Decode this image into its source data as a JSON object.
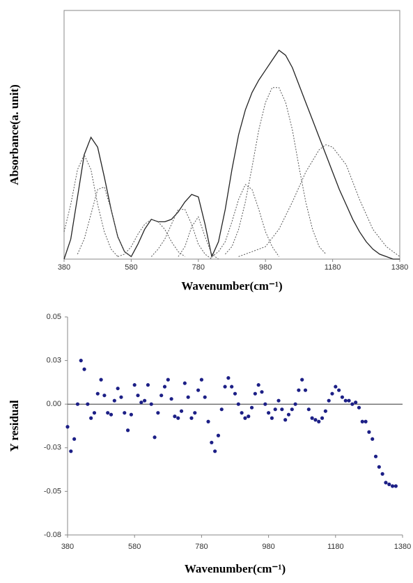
{
  "chart_data": [
    {
      "type": "line",
      "y_label": "Absorbance(a. unit)",
      "x_label": "Wavenumber(cm⁻¹)",
      "xlim": [
        380,
        1380
      ],
      "xticks": [
        380,
        580,
        780,
        980,
        1180,
        1380
      ],
      "ylim": [
        0,
        1
      ],
      "frame": true,
      "x": [
        380,
        400,
        420,
        440,
        460,
        480,
        500,
        520,
        540,
        560,
        580,
        600,
        620,
        640,
        660,
        680,
        700,
        720,
        740,
        760,
        780,
        800,
        820,
        840,
        860,
        880,
        900,
        920,
        940,
        960,
        980,
        1000,
        1020,
        1040,
        1060,
        1080,
        1100,
        1120,
        1140,
        1160,
        1180,
        1200,
        1220,
        1240,
        1260,
        1280,
        1300,
        1320,
        1340,
        1360,
        1380
      ],
      "series": [
        {
          "color": "#222222",
          "line_style": "solid",
          "values": [
            0.0,
            0.08,
            0.25,
            0.42,
            0.49,
            0.45,
            0.33,
            0.2,
            0.09,
            0.03,
            0.01,
            0.06,
            0.12,
            0.16,
            0.15,
            0.15,
            0.16,
            0.19,
            0.23,
            0.26,
            0.25,
            0.14,
            0.01,
            0.07,
            0.2,
            0.36,
            0.5,
            0.6,
            0.67,
            0.72,
            0.76,
            0.8,
            0.84,
            0.82,
            0.77,
            0.7,
            0.63,
            0.56,
            0.49,
            0.42,
            0.35,
            0.28,
            0.22,
            0.16,
            0.11,
            0.07,
            0.04,
            0.02,
            0.01,
            0.0,
            0.0
          ]
        },
        {
          "color": "#555555",
          "line_style": "dotted",
          "x": [
            380,
            400,
            420,
            440,
            460,
            480,
            500,
            520,
            540
          ],
          "values": [
            0.11,
            0.22,
            0.36,
            0.42,
            0.36,
            0.22,
            0.11,
            0.04,
            0.01
          ]
        },
        {
          "color": "#555555",
          "line_style": "dotted",
          "x": [
            420,
            440,
            460,
            480,
            500,
            520,
            540,
            560,
            580
          ],
          "values": [
            0.02,
            0.08,
            0.18,
            0.28,
            0.29,
            0.2,
            0.09,
            0.03,
            0.01
          ]
        },
        {
          "color": "#555555",
          "line_style": "dotted",
          "x": [
            540,
            560,
            580,
            600,
            620,
            640,
            660,
            680,
            700,
            720,
            740
          ],
          "values": [
            0.01,
            0.02,
            0.05,
            0.1,
            0.14,
            0.16,
            0.15,
            0.12,
            0.07,
            0.03,
            0.01
          ]
        },
        {
          "color": "#555555",
          "line_style": "dotted",
          "x": [
            640,
            660,
            680,
            700,
            720,
            740,
            760,
            780,
            800,
            820
          ],
          "values": [
            0.01,
            0.04,
            0.08,
            0.14,
            0.2,
            0.2,
            0.14,
            0.06,
            0.02,
            0.0
          ]
        },
        {
          "color": "#555555",
          "line_style": "dotted",
          "x": [
            720,
            740,
            760,
            780,
            800,
            820,
            840
          ],
          "values": [
            0.01,
            0.05,
            0.13,
            0.17,
            0.09,
            0.02,
            0.0
          ]
        },
        {
          "color": "#555555",
          "line_style": "dotted",
          "x": [
            820,
            840,
            860,
            880,
            900,
            920,
            940,
            960,
            980,
            1000,
            1020
          ],
          "values": [
            0.01,
            0.03,
            0.07,
            0.15,
            0.24,
            0.3,
            0.28,
            0.2,
            0.11,
            0.05,
            0.01
          ]
        },
        {
          "color": "#555555",
          "line_style": "dotted",
          "x": [
            860,
            880,
            900,
            920,
            940,
            960,
            980,
            1000,
            1020,
            1040,
            1060,
            1080,
            1100,
            1120,
            1140,
            1160
          ],
          "values": [
            0.02,
            0.05,
            0.12,
            0.23,
            0.37,
            0.52,
            0.63,
            0.69,
            0.69,
            0.63,
            0.52,
            0.37,
            0.23,
            0.12,
            0.05,
            0.02
          ]
        },
        {
          "color": "#555555",
          "line_style": "dotted",
          "x": [
            900,
            940,
            980,
            1020,
            1060,
            1100,
            1140,
            1160,
            1180,
            1220,
            1260,
            1300,
            1340,
            1380
          ],
          "values": [
            0.01,
            0.03,
            0.05,
            0.12,
            0.23,
            0.35,
            0.44,
            0.46,
            0.45,
            0.38,
            0.24,
            0.12,
            0.05,
            0.01
          ]
        }
      ]
    },
    {
      "type": "scatter",
      "y_label": "Y residual",
      "x_label": "Wavenumber(cm⁻¹)",
      "xlim": [
        380,
        1380
      ],
      "xticks": [
        380,
        580,
        780,
        980,
        1180,
        1380
      ],
      "ylim": [
        -0.075,
        0.05
      ],
      "yticks": [
        {
          "value": 0.05,
          "label": "0.05"
        },
        {
          "value": 0.025,
          "label": "0.03"
        },
        {
          "value": 0,
          "label": "0.00"
        },
        {
          "value": -0.025,
          "label": "-0.03"
        },
        {
          "value": -0.05,
          "label": "-0.05"
        },
        {
          "value": -0.075,
          "label": "-0.08"
        }
      ],
      "hline": 0,
      "frame": false,
      "series": [
        {
          "color": "#1c1f86",
          "x": [
            380,
            390,
            400,
            410,
            420,
            430,
            440,
            450,
            460,
            470,
            480,
            490,
            500,
            510,
            520,
            530,
            540,
            550,
            560,
            570,
            580,
            590,
            600,
            610,
            620,
            630,
            640,
            650,
            660,
            670,
            680,
            690,
            700,
            710,
            720,
            730,
            740,
            750,
            760,
            770,
            780,
            790,
            800,
            810,
            820,
            830,
            840,
            850,
            860,
            870,
            880,
            890,
            900,
            910,
            920,
            930,
            940,
            950,
            960,
            970,
            980,
            990,
            1000,
            1010,
            1020,
            1030,
            1040,
            1050,
            1060,
            1070,
            1080,
            1090,
            1100,
            1110,
            1120,
            1130,
            1140,
            1150,
            1160,
            1170,
            1180,
            1190,
            1200,
            1210,
            1220,
            1230,
            1240,
            1250,
            1260,
            1270,
            1280,
            1290,
            1300,
            1310,
            1320,
            1330,
            1340,
            1350,
            1360
          ],
          "values": [
            -0.013,
            -0.027,
            -0.02,
            0.0,
            0.025,
            0.02,
            0.0,
            -0.008,
            -0.005,
            0.006,
            0.014,
            0.005,
            -0.005,
            -0.006,
            0.002,
            0.009,
            0.004,
            -0.005,
            -0.015,
            -0.006,
            0.011,
            0.005,
            0.001,
            0.002,
            0.011,
            0.0,
            -0.019,
            -0.005,
            0.005,
            0.01,
            0.014,
            0.003,
            -0.007,
            -0.008,
            -0.004,
            0.012,
            0.004,
            -0.008,
            -0.005,
            0.008,
            0.014,
            0.004,
            -0.01,
            -0.022,
            -0.027,
            -0.018,
            -0.003,
            0.01,
            0.015,
            0.01,
            0.006,
            0.0,
            -0.005,
            -0.008,
            -0.007,
            -0.002,
            0.006,
            0.011,
            0.007,
            0.0,
            -0.005,
            -0.008,
            -0.003,
            0.002,
            -0.003,
            -0.009,
            -0.006,
            -0.003,
            0.0,
            0.008,
            0.014,
            0.008,
            -0.003,
            -0.008,
            -0.009,
            -0.01,
            -0.008,
            -0.004,
            0.002,
            0.006,
            0.01,
            0.008,
            0.004,
            0.002,
            0.002,
            0.0,
            0.001,
            -0.002,
            -0.01,
            -0.01,
            -0.016,
            -0.02,
            -0.03,
            -0.036,
            -0.04,
            -0.045,
            -0.046,
            -0.047,
            -0.047
          ]
        }
      ]
    }
  ]
}
